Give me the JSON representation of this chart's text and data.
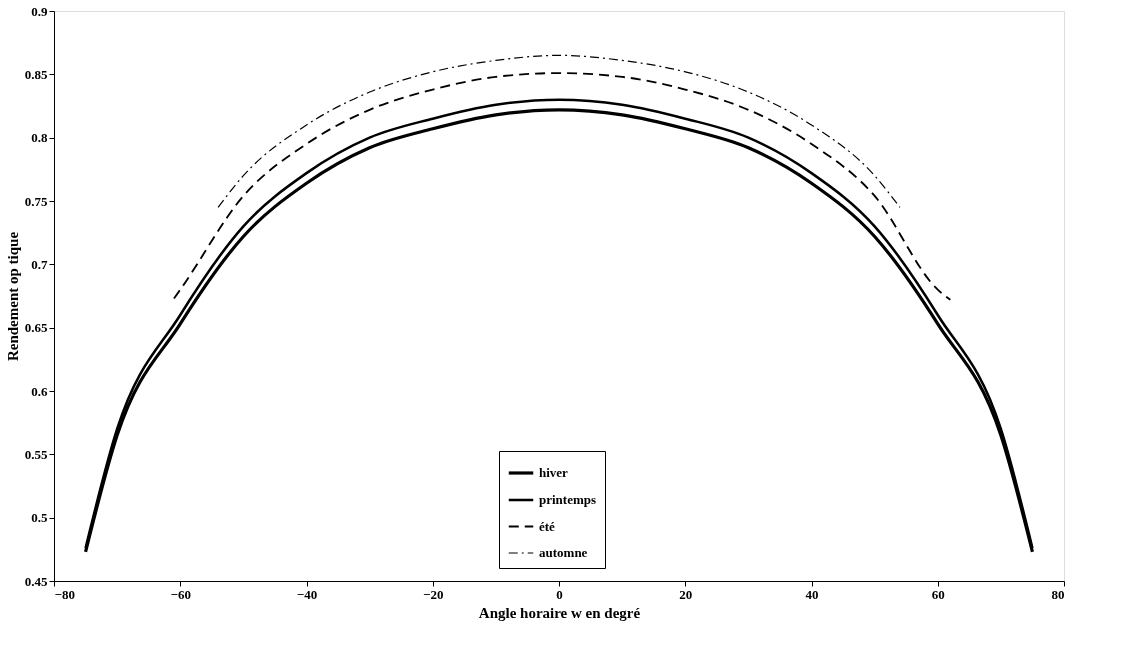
{
  "chart_data": {
    "type": "line",
    "xlabel": "Angle horaire w en degré",
    "ylabel": "Rendement op tique",
    "xlim": [
      -80,
      80
    ],
    "xticks": [
      -80,
      -60,
      -40,
      -20,
      0,
      20,
      40,
      60,
      80
    ],
    "ylim": [
      0.45,
      0.9
    ],
    "yticks": [
      0.45,
      0.5,
      0.55,
      0.6,
      0.65,
      0.7,
      0.75,
      0.8,
      0.85,
      0.9
    ],
    "grid": false,
    "legend": "bottom",
    "marker": "none",
    "series": [
      {
        "name": "hiver",
        "color": "#000000",
        "line_style": "solid",
        "x": [
          -75,
          -70,
          -60,
          -50,
          -40,
          -30,
          -20,
          -10,
          0,
          10,
          20,
          30,
          40,
          50,
          60,
          70,
          75
        ],
        "values": [
          0.473,
          0.565,
          0.653,
          0.722,
          0.764,
          0.792,
          0.807,
          0.818,
          0.822,
          0.818,
          0.807,
          0.792,
          0.764,
          0.722,
          0.653,
          0.565,
          0.473
        ]
      },
      {
        "name": "printemps",
        "color": "#000000",
        "line_style": "solid",
        "x": [
          -75,
          -70,
          -60,
          -50,
          -40,
          -30,
          -20,
          -10,
          0,
          10,
          20,
          30,
          40,
          50,
          60,
          70,
          75
        ],
        "values": [
          0.476,
          0.57,
          0.66,
          0.73,
          0.772,
          0.8,
          0.815,
          0.826,
          0.83,
          0.826,
          0.815,
          0.8,
          0.772,
          0.73,
          0.66,
          0.57,
          0.476
        ]
      },
      {
        "name": "été",
        "color": "#000000",
        "line_style": "dashed",
        "x": [
          -61,
          -60,
          -50,
          -40,
          -30,
          -20,
          -10,
          0,
          10,
          20,
          30,
          40,
          50,
          60,
          62
        ],
        "values": [
          0.673,
          0.68,
          0.754,
          0.795,
          0.822,
          0.838,
          0.848,
          0.851,
          0.848,
          0.838,
          0.822,
          0.795,
          0.754,
          0.68,
          0.672
        ]
      },
      {
        "name": "automne",
        "color": "#000000",
        "line_style": "dashdot",
        "x": [
          -54,
          -50,
          -40,
          -30,
          -20,
          -10,
          0,
          10,
          20,
          30,
          40,
          50,
          54
        ],
        "values": [
          0.745,
          0.77,
          0.81,
          0.836,
          0.852,
          0.861,
          0.865,
          0.861,
          0.852,
          0.836,
          0.81,
          0.77,
          0.745
        ]
      }
    ]
  }
}
